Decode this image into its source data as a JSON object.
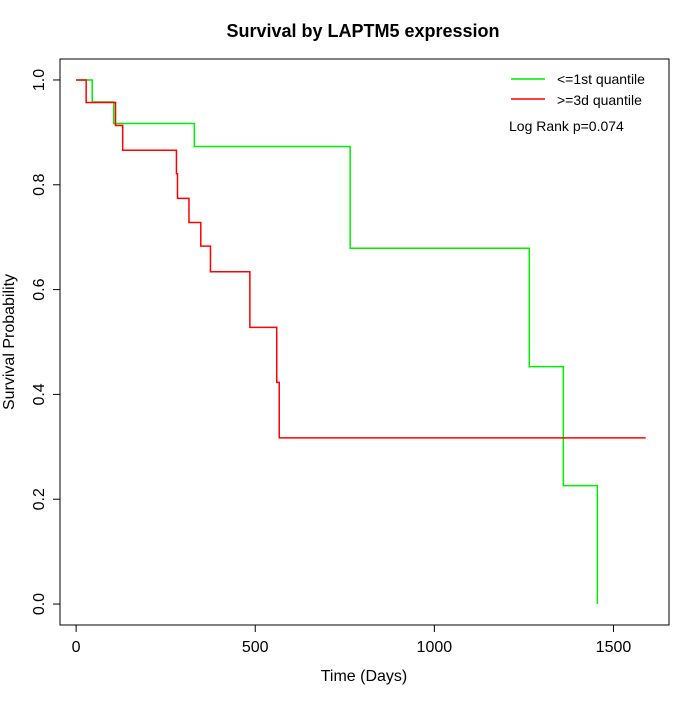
{
  "chart_data": {
    "type": "line",
    "title": "Survival by LAPTM5 expression",
    "xlabel": "Time (Days)",
    "ylabel": "Survival Probability",
    "xlim": [
      -45,
      1655
    ],
    "ylim": [
      -0.04,
      1.04
    ],
    "xticks": [
      0,
      500,
      1000,
      1500
    ],
    "xtick_labels": [
      "0",
      "500",
      "1000",
      "1500"
    ],
    "yticks": [
      0.0,
      0.2,
      0.4,
      0.6,
      0.8,
      1.0
    ],
    "ytick_labels": [
      "0.0",
      "0.2",
      "0.4",
      "0.6",
      "0.8",
      "1.0"
    ],
    "grid": false,
    "legend_position": "top-right",
    "annotation": "Log Rank p=0.074",
    "series": [
      {
        "name": "<=1st quantile",
        "color": "#00ee00",
        "step": true,
        "x": [
          0,
          45,
          105,
          330,
          765,
          1265,
          1360,
          1455
        ],
        "y": [
          1.0,
          0.958,
          0.917,
          0.873,
          0.679,
          0.453,
          0.226,
          0.0
        ]
      },
      {
        "name": ">=3d quantile",
        "color": "#ff0000",
        "step": true,
        "x": [
          0,
          28,
          110,
          130,
          280,
          283,
          315,
          348,
          375,
          485,
          560,
          567,
          1590
        ],
        "y": [
          1.0,
          0.957,
          0.913,
          0.866,
          0.821,
          0.774,
          0.728,
          0.683,
          0.634,
          0.528,
          0.423,
          0.317,
          0.317
        ]
      }
    ]
  }
}
